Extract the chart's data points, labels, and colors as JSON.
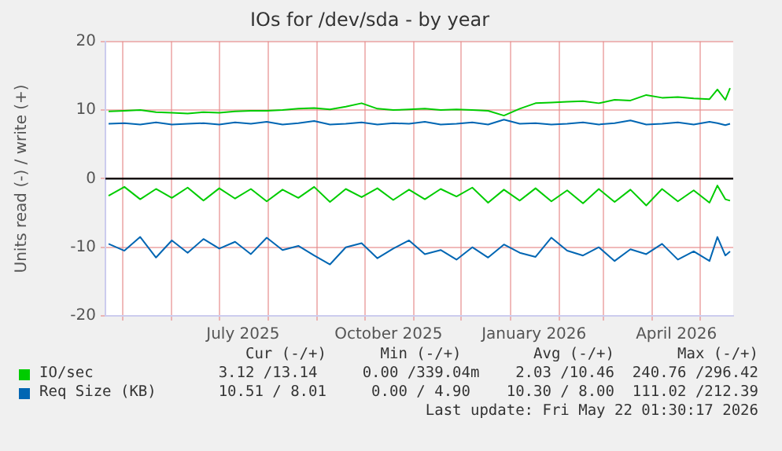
{
  "chart_data": {
    "type": "line",
    "title": "IOs for /dev/sda - by year",
    "ylabel": "Units read (-) / write (+)",
    "x": [
      "2025-04-22",
      "2025-05-02",
      "2025-05-12",
      "2025-05-22",
      "2025-06-01",
      "2025-06-11",
      "2025-06-21",
      "2025-07-01",
      "2025-07-11",
      "2025-07-21",
      "2025-07-31",
      "2025-08-10",
      "2025-08-20",
      "2025-08-30",
      "2025-09-09",
      "2025-09-19",
      "2025-09-29",
      "2025-10-09",
      "2025-10-19",
      "2025-10-29",
      "2025-11-08",
      "2025-11-18",
      "2025-11-28",
      "2025-12-08",
      "2025-12-18",
      "2025-12-28",
      "2026-01-07",
      "2026-01-17",
      "2026-01-27",
      "2026-02-06",
      "2026-02-16",
      "2026-02-26",
      "2026-03-08",
      "2026-03-18",
      "2026-03-28",
      "2026-04-07",
      "2026-04-17",
      "2026-04-27",
      "2026-05-07",
      "2026-05-12",
      "2026-05-17",
      "2026-05-20"
    ],
    "series": [
      {
        "name": "IO/sec",
        "color": "#00cc00",
        "values": [
          9.8,
          9.9,
          10.0,
          9.7,
          9.6,
          9.5,
          9.7,
          9.6,
          9.8,
          9.9,
          9.9,
          10.0,
          10.2,
          10.3,
          10.1,
          10.5,
          11.0,
          10.2,
          10.0,
          10.1,
          10.2,
          10.0,
          10.1,
          10.0,
          9.9,
          9.2,
          10.2,
          11.0,
          11.1,
          11.2,
          11.3,
          11.0,
          11.5,
          11.4,
          12.2,
          11.8,
          11.9,
          11.7,
          11.6,
          13.0,
          11.5,
          13.2
        ]
      },
      {
        "color": "#00cc00",
        "values": [
          -2.5,
          -1.2,
          -3.0,
          -1.5,
          -2.8,
          -1.3,
          -3.2,
          -1.4,
          -2.9,
          -1.5,
          -3.3,
          -1.6,
          -2.8,
          -1.2,
          -3.4,
          -1.5,
          -2.7,
          -1.4,
          -3.1,
          -1.6,
          -3.0,
          -1.5,
          -2.6,
          -1.3,
          -3.5,
          -1.6,
          -3.2,
          -1.4,
          -3.3,
          -1.7,
          -3.6,
          -1.5,
          -3.4,
          -1.6,
          -3.9,
          -1.5,
          -3.3,
          -1.7,
          -3.5,
          -1.0,
          -3.0,
          -3.2
        ]
      },
      {
        "name": "Req Size (KB)",
        "color": "#0066b3",
        "values": [
          8.0,
          8.1,
          7.9,
          8.2,
          7.9,
          8.0,
          8.1,
          7.9,
          8.2,
          8.0,
          8.3,
          7.9,
          8.1,
          8.4,
          7.9,
          8.0,
          8.2,
          7.9,
          8.1,
          8.0,
          8.3,
          7.9,
          8.0,
          8.2,
          7.9,
          8.6,
          8.0,
          8.1,
          7.9,
          8.0,
          8.2,
          7.9,
          8.1,
          8.5,
          7.9,
          8.0,
          8.2,
          7.9,
          8.3,
          8.1,
          7.8,
          8.0
        ]
      },
      {
        "color": "#0066b3",
        "values": [
          -9.5,
          -10.5,
          -8.5,
          -11.5,
          -9.0,
          -10.8,
          -8.8,
          -10.2,
          -9.2,
          -11.0,
          -8.6,
          -10.4,
          -9.8,
          -11.2,
          -12.5,
          -10.0,
          -9.4,
          -11.6,
          -10.2,
          -9.0,
          -11.0,
          -10.4,
          -11.8,
          -10.0,
          -11.5,
          -9.6,
          -10.8,
          -11.4,
          -8.6,
          -10.5,
          -11.2,
          -10.0,
          -12.0,
          -10.3,
          -11.0,
          -9.5,
          -11.8,
          -10.6,
          -12.0,
          -8.5,
          -11.2,
          -10.6
        ]
      }
    ],
    "xlim": [
      "2025-04-20",
      "2026-05-22"
    ],
    "xticks": [
      {
        "value": "2025-05-01",
        "label": null
      },
      {
        "value": "2025-06-01",
        "label": null
      },
      {
        "value": "2025-07-01",
        "label": null
      },
      {
        "value": "2025-07-16",
        "label": "July 2025"
      },
      {
        "value": "2025-08-01",
        "label": null
      },
      {
        "value": "2025-09-01",
        "label": null
      },
      {
        "value": "2025-10-01",
        "label": null
      },
      {
        "value": "2025-10-16",
        "label": "October 2025"
      },
      {
        "value": "2025-11-01",
        "label": null
      },
      {
        "value": "2025-12-01",
        "label": null
      },
      {
        "value": "2026-01-01",
        "label": null
      },
      {
        "value": "2026-01-16",
        "label": "January 2026"
      },
      {
        "value": "2026-02-01",
        "label": null
      },
      {
        "value": "2026-03-01",
        "label": null
      },
      {
        "value": "2026-04-01",
        "label": null
      },
      {
        "value": "2026-04-16",
        "label": "April 2026"
      },
      {
        "value": "2026-05-01",
        "label": null
      }
    ],
    "ylim": [
      -20,
      20
    ],
    "yticks": [
      -20,
      -10,
      0,
      10,
      20
    ],
    "ref_lines": [
      {
        "axis": "y",
        "value": 0,
        "color": "#000000"
      }
    ],
    "grid": true,
    "legend": "bottom",
    "marker": "none",
    "line_style": "solid",
    "annotations": [
      "Cur (-/+)      Min (-/+)        Avg (-/+)       Max (-/+)",
      "3.12 /13.14     0.00 /339.04m    2.03 /10.46  240.76 /296.42",
      "10.51 / 8.01     0.00 / 4.90    10.30 / 8.00  111.02 /212.39",
      "Last update: Fri May 22 01:30:17 2026"
    ]
  }
}
